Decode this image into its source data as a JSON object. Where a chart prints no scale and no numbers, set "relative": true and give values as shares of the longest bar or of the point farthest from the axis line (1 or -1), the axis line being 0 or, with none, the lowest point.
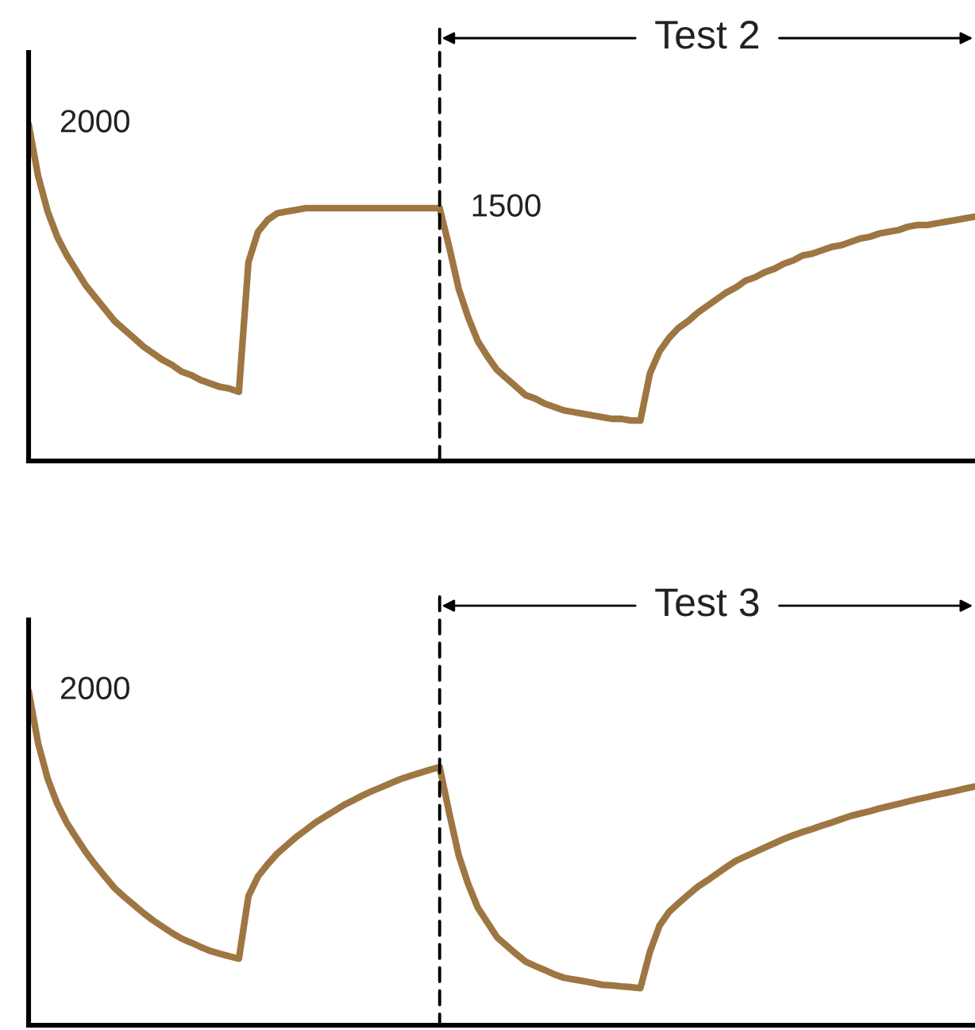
{
  "chart_data": [
    {
      "type": "line",
      "tick_labels": false,
      "categories": [
        null,
        null,
        null,
        null,
        null,
        null,
        null,
        null,
        null,
        null,
        null,
        null,
        null,
        null,
        null,
        null,
        null,
        null,
        null,
        null,
        null,
        null,
        null,
        null,
        null,
        null,
        null,
        null,
        null,
        null,
        null,
        null,
        null,
        null,
        null,
        null,
        null,
        null,
        null,
        null,
        null,
        null,
        null,
        null,
        null,
        null,
        null,
        null,
        null,
        null,
        null,
        null,
        null,
        null,
        null,
        null,
        null,
        null,
        null,
        null,
        null,
        null,
        null,
        null,
        null,
        null,
        null,
        null,
        null,
        null,
        null,
        null,
        null,
        null,
        null,
        null,
        null,
        null,
        null,
        null,
        null,
        null,
        null,
        null,
        null,
        null,
        null,
        null,
        null,
        null,
        null,
        null,
        null,
        null,
        null,
        null,
        null,
        null,
        null,
        null
      ],
      "series": [
        {
          "color": "#9e7642",
          "values": [
            2000,
            1690,
            1480,
            1330,
            1220,
            1130,
            1040,
            970,
            900,
            830,
            780,
            730,
            680,
            640,
            600,
            570,
            530,
            510,
            480,
            460,
            440,
            430,
            410,
            1180,
            1360,
            1430,
            1470,
            1480,
            1490,
            1500,
            1500,
            1500,
            1500,
            1500,
            1500,
            1500,
            1500,
            1500,
            1500,
            1500,
            1500,
            1500,
            1500,
            1500,
            null,
            null,
            null,
            null,
            null,
            null,
            null,
            null,
            null,
            null,
            null,
            null,
            null,
            null,
            null,
            null,
            null,
            null,
            null,
            null,
            null,
            null,
            null,
            null,
            null,
            null,
            null,
            null,
            null,
            null,
            null,
            null,
            null,
            null,
            null,
            null,
            null,
            null,
            null,
            null,
            null,
            null,
            null,
            null,
            null,
            null,
            null,
            null,
            null,
            null,
            null,
            null,
            null,
            null,
            null,
            null
          ],
          "value_labels": [
            "2000",
            null,
            null,
            null,
            null,
            null,
            null,
            null,
            null,
            null,
            null,
            null,
            null,
            null,
            null,
            null,
            null,
            null,
            null,
            null,
            null,
            null,
            null,
            null,
            null,
            null,
            null,
            null,
            null,
            null,
            null,
            null,
            null,
            null,
            null,
            null,
            null,
            null,
            null,
            null,
            null,
            null,
            null,
            null,
            null,
            null,
            null,
            null,
            null,
            null,
            null,
            null,
            null,
            null,
            null,
            null,
            null,
            null,
            null,
            null,
            null,
            null,
            null,
            null,
            null,
            null,
            null,
            null,
            null,
            null,
            null,
            null,
            null,
            null,
            null,
            null,
            null,
            null,
            null,
            null,
            null,
            null,
            null,
            null,
            null,
            null,
            null,
            null,
            null,
            null,
            null,
            null,
            null,
            null,
            null,
            null,
            null,
            null,
            null,
            null
          ]
        },
        {
          "name": "Test 2",
          "color": "#9e7642",
          "values": [
            null,
            null,
            null,
            null,
            null,
            null,
            null,
            null,
            null,
            null,
            null,
            null,
            null,
            null,
            null,
            null,
            null,
            null,
            null,
            null,
            null,
            null,
            null,
            null,
            null,
            null,
            null,
            null,
            null,
            null,
            null,
            null,
            null,
            null,
            null,
            null,
            null,
            null,
            null,
            null,
            null,
            null,
            null,
            1500,
            1270,
            1020,
            850,
            710,
            620,
            540,
            490,
            440,
            390,
            370,
            340,
            320,
            300,
            290,
            280,
            270,
            260,
            250,
            250,
            240,
            240,
            520,
            650,
            730,
            790,
            830,
            880,
            920,
            960,
            1000,
            1030,
            1070,
            1090,
            1120,
            1140,
            1170,
            1190,
            1220,
            1230,
            1250,
            1270,
            1280,
            1300,
            1320,
            1330,
            1350,
            1360,
            1370,
            1390,
            1400,
            1400,
            1410,
            1420,
            1430,
            1440,
            1450
          ],
          "value_labels": [
            null,
            null,
            null,
            null,
            null,
            null,
            null,
            null,
            null,
            null,
            null,
            null,
            null,
            null,
            null,
            null,
            null,
            null,
            null,
            null,
            null,
            null,
            null,
            null,
            null,
            null,
            null,
            null,
            null,
            null,
            null,
            null,
            null,
            null,
            null,
            null,
            null,
            null,
            null,
            null,
            null,
            null,
            null,
            "1500",
            null,
            null,
            null,
            null,
            null,
            null,
            null,
            null,
            null,
            null,
            null,
            null,
            null,
            null,
            null,
            null,
            null,
            null,
            null,
            null,
            null,
            null,
            null,
            null,
            null,
            null,
            null,
            null,
            null,
            null,
            null,
            null,
            null,
            null,
            null,
            null,
            null,
            null,
            null,
            null,
            null,
            null,
            null,
            null,
            null,
            null,
            null,
            null,
            null,
            null,
            null,
            null,
            null,
            null,
            null,
            null
          ]
        }
      ]
    },
    {
      "type": "line",
      "relative": true,
      "categories": [
        null,
        null,
        null,
        null,
        null,
        null,
        null,
        null,
        null,
        null,
        null,
        null,
        null,
        null,
        null,
        null,
        null,
        null,
        null,
        null,
        null,
        null,
        null,
        null,
        null,
        null,
        null,
        null,
        null,
        null,
        null,
        null,
        null,
        null,
        null,
        null,
        null,
        null,
        null,
        null,
        null,
        null,
        null,
        null,
        null,
        null,
        null,
        null,
        null,
        null,
        null,
        null,
        null,
        null,
        null,
        null,
        null,
        null,
        null,
        null,
        null,
        null,
        null,
        null,
        null,
        null,
        null,
        null,
        null,
        null,
        null,
        null,
        null,
        null,
        null,
        null,
        null,
        null,
        null,
        null,
        null,
        null,
        null,
        null,
        null,
        null,
        null,
        null,
        null,
        null,
        null,
        null,
        null,
        null,
        null,
        null,
        null,
        null,
        null,
        null
      ],
      "series": [
        {
          "color": "#9e7642",
          "values": [
            1,
            0.843,
            0.737,
            0.662,
            0.605,
            0.56,
            0.517,
            0.479,
            0.444,
            0.41,
            0.384,
            0.36,
            0.336,
            0.314,
            0.295,
            0.276,
            0.259,
            0.247,
            0.234,
            0.222,
            0.214,
            0.206,
            0.199,
            0.386,
            0.445,
            0.481,
            0.513,
            0.538,
            0.563,
            0.584,
            0.606,
            0.624,
            0.641,
            0.659,
            0.673,
            0.688,
            0.701,
            0.713,
            0.725,
            0.737,
            0.746,
            0.755,
            0.764,
            0.772,
            null,
            null,
            null,
            null,
            null,
            null,
            null,
            null,
            null,
            null,
            null,
            null,
            null,
            null,
            null,
            null,
            null,
            null,
            null,
            null,
            null,
            null,
            null,
            null,
            null,
            null,
            null,
            null,
            null,
            null,
            null,
            null,
            null,
            null,
            null,
            null,
            null,
            null,
            null,
            null,
            null,
            null,
            null,
            null,
            null,
            null,
            null,
            null,
            null,
            null,
            null,
            null,
            null,
            null,
            null,
            null
          ]
        },
        {
          "name": "Test 3",
          "color": "#9e7642",
          "values": [
            null,
            null,
            null,
            null,
            null,
            null,
            null,
            null,
            null,
            null,
            null,
            null,
            null,
            null,
            null,
            null,
            null,
            null,
            null,
            null,
            null,
            null,
            null,
            null,
            null,
            null,
            null,
            null,
            null,
            null,
            null,
            null,
            null,
            null,
            null,
            null,
            null,
            null,
            null,
            null,
            null,
            null,
            null,
            0.772,
            0.635,
            0.507,
            0.421,
            0.351,
            0.307,
            0.263,
            0.238,
            0.213,
            0.19,
            0.177,
            0.165,
            0.152,
            0.142,
            0.137,
            0.132,
            0.127,
            0.121,
            0.119,
            0.116,
            0.114,
            0.111,
            0.22,
            0.298,
            0.339,
            0.365,
            0.39,
            0.414,
            0.433,
            0.453,
            0.473,
            0.492,
            0.505,
            0.518,
            0.531,
            0.544,
            0.557,
            0.568,
            0.578,
            0.587,
            0.597,
            0.606,
            0.616,
            0.626,
            0.633,
            0.64,
            0.648,
            0.655,
            0.662,
            0.669,
            0.676,
            0.682,
            0.689,
            0.695,
            0.701,
            0.708,
            0.714
          ]
        }
      ],
      "annotations": [
        "2000"
      ]
    }
  ]
}
